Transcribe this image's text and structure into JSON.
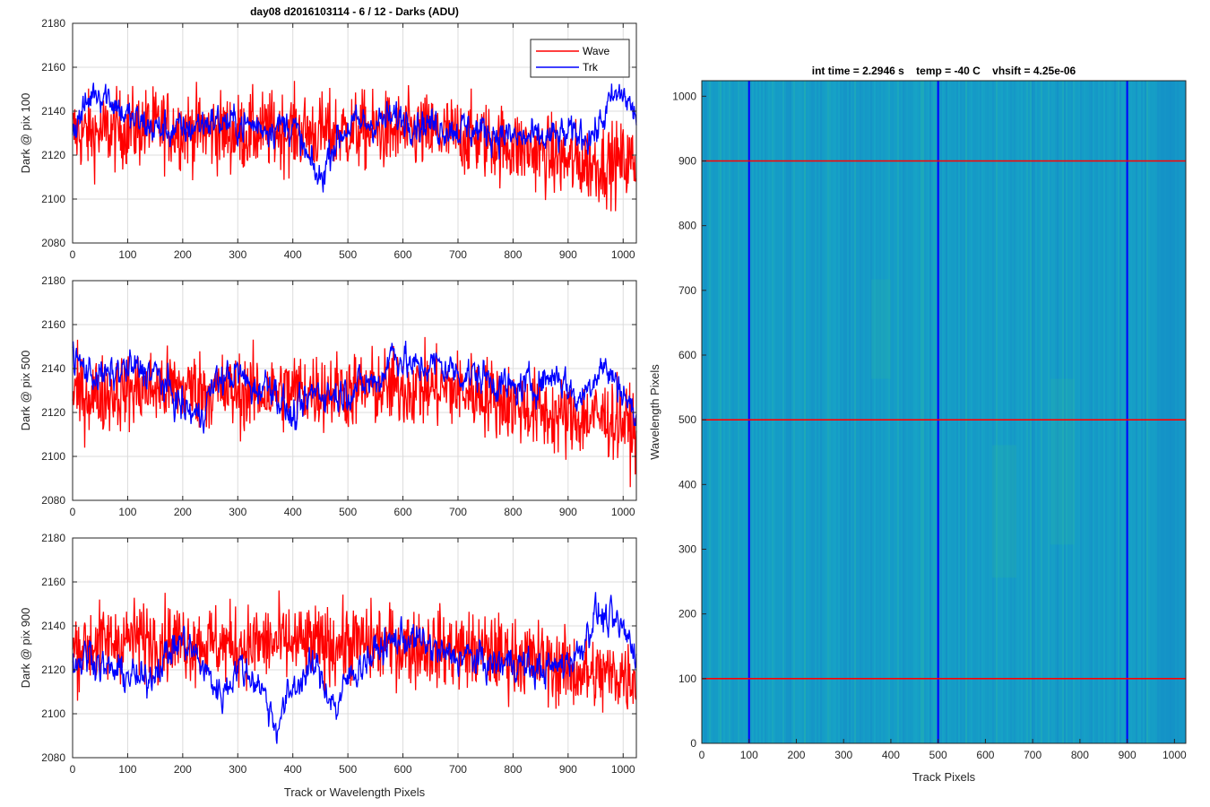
{
  "chart_data": [
    {
      "type": "line",
      "title": "day08 d2016103114 - 6 / 12 - Darks (ADU)",
      "xlabel": "",
      "ylabel": "Dark @ pix 100",
      "xlim": [
        0,
        1024
      ],
      "ylim": [
        2080,
        2180
      ],
      "xticks": [
        0,
        100,
        200,
        300,
        400,
        500,
        600,
        700,
        800,
        900,
        1000
      ],
      "yticks": [
        2080,
        2100,
        2120,
        2140,
        2160,
        2180
      ],
      "grid": true,
      "legend": "top-right",
      "series": [
        {
          "name": "Wave",
          "color": "#ff0000",
          "description": "noisy trace, about 2094-2152",
          "x": [
            0,
            50,
            100,
            150,
            200,
            250,
            300,
            350,
            400,
            450,
            500,
            550,
            600,
            650,
            700,
            750,
            800,
            850,
            900,
            950,
            1000,
            1024
          ],
          "values": [
            2130,
            2130,
            2132,
            2133,
            2132,
            2131,
            2130,
            2131,
            2131,
            2130,
            2131,
            2131,
            2130,
            2130,
            2129,
            2127,
            2124,
            2121,
            2117,
            2116,
            2117,
            2117
          ]
        },
        {
          "name": "Trk",
          "color": "#0000ff",
          "x": [
            0,
            20,
            40,
            60,
            80,
            100,
            150,
            200,
            250,
            300,
            350,
            400,
            430,
            450,
            470,
            500,
            550,
            600,
            650,
            700,
            750,
            800,
            850,
            900,
            950,
            980,
            1000,
            1024
          ],
          "values": [
            2132,
            2140,
            2150,
            2148,
            2143,
            2137,
            2132,
            2131,
            2136,
            2134,
            2133,
            2134,
            2116,
            2108,
            2124,
            2133,
            2135,
            2137,
            2134,
            2132,
            2131,
            2128,
            2127,
            2129,
            2130,
            2145,
            2148,
            2137
          ]
        }
      ]
    },
    {
      "type": "line",
      "title": "",
      "xlabel": "",
      "ylabel": "Dark @ pix 500",
      "xlim": [
        0,
        1024
      ],
      "ylim": [
        2080,
        2180
      ],
      "xticks": [
        0,
        100,
        200,
        300,
        400,
        500,
        600,
        700,
        800,
        900,
        1000
      ],
      "yticks": [
        2080,
        2100,
        2120,
        2140,
        2160,
        2180
      ],
      "grid": true,
      "series": [
        {
          "name": "Wave",
          "color": "#ff0000",
          "x": [
            0,
            50,
            100,
            150,
            200,
            250,
            300,
            350,
            400,
            450,
            500,
            550,
            600,
            650,
            700,
            750,
            800,
            850,
            900,
            950,
            1000,
            1024
          ],
          "values": [
            2128,
            2128,
            2130,
            2131,
            2131,
            2130,
            2129,
            2129,
            2130,
            2130,
            2130,
            2131,
            2131,
            2131,
            2130,
            2128,
            2124,
            2120,
            2117,
            2118,
            2116,
            2110
          ]
        },
        {
          "name": "Trk",
          "color": "#0000ff",
          "x": [
            0,
            30,
            60,
            100,
            150,
            200,
            230,
            260,
            300,
            330,
            360,
            400,
            440,
            480,
            520,
            560,
            580,
            620,
            660,
            700,
            750,
            800,
            850,
            880,
            920,
            960,
            1000,
            1024
          ],
          "values": [
            2145,
            2138,
            2136,
            2140,
            2138,
            2122,
            2118,
            2134,
            2138,
            2130,
            2134,
            2116,
            2130,
            2128,
            2132,
            2135,
            2148,
            2140,
            2142,
            2138,
            2136,
            2130,
            2134,
            2138,
            2125,
            2142,
            2130,
            2116
          ]
        }
      ]
    },
    {
      "type": "line",
      "title": "",
      "xlabel": "Track or Wavelength Pixels",
      "ylabel": "Dark @ pix 900",
      "xlim": [
        0,
        1024
      ],
      "ylim": [
        2080,
        2180
      ],
      "xticks": [
        0,
        100,
        200,
        300,
        400,
        500,
        600,
        700,
        800,
        900,
        1000
      ],
      "yticks": [
        2080,
        2100,
        2120,
        2140,
        2160,
        2180
      ],
      "grid": true,
      "series": [
        {
          "name": "Wave",
          "color": "#ff0000",
          "x": [
            0,
            50,
            100,
            150,
            200,
            250,
            300,
            350,
            400,
            450,
            500,
            550,
            600,
            650,
            700,
            750,
            800,
            850,
            900,
            950,
            1000,
            1024
          ],
          "values": [
            2130,
            2132,
            2134,
            2134,
            2133,
            2132,
            2131,
            2132,
            2132,
            2131,
            2132,
            2132,
            2131,
            2130,
            2129,
            2128,
            2126,
            2124,
            2120,
            2117,
            2118,
            2117
          ]
        },
        {
          "name": "Trk",
          "color": "#0000ff",
          "x": [
            0,
            30,
            60,
            100,
            130,
            160,
            200,
            230,
            270,
            300,
            340,
            370,
            400,
            440,
            480,
            500,
            530,
            560,
            600,
            640,
            680,
            720,
            760,
            800,
            840,
            880,
            920,
            950,
            1000,
            1024
          ],
          "values": [
            2122,
            2128,
            2120,
            2118,
            2114,
            2124,
            2134,
            2124,
            2108,
            2122,
            2114,
            2094,
            2112,
            2122,
            2102,
            2116,
            2124,
            2130,
            2135,
            2132,
            2126,
            2126,
            2122,
            2124,
            2120,
            2121,
            2128,
            2146,
            2138,
            2128
          ]
        }
      ]
    },
    {
      "type": "heatmap",
      "title": "int time = 2.2946 s    temp = -40 C    vhsift = 4.25e-06",
      "xlabel": "Track Pixels",
      "ylabel": "Wavelength Pixels",
      "xlim": [
        0,
        1024
      ],
      "ylim": [
        0,
        1024
      ],
      "xticks": [
        0,
        100,
        200,
        300,
        400,
        500,
        600,
        700,
        800,
        900,
        1000
      ],
      "yticks": [
        0,
        100,
        200,
        300,
        400,
        500,
        600,
        700,
        800,
        900,
        1000
      ],
      "colormap_approx": [
        "#1380c8",
        "#16a3c6",
        "#2bb3a0"
      ],
      "vertical_lines": {
        "color": "#0000ff",
        "x": [
          100,
          500,
          900
        ]
      },
      "horizontal_lines": {
        "color": "#ff0000",
        "y": [
          100,
          500,
          900
        ]
      }
    }
  ]
}
